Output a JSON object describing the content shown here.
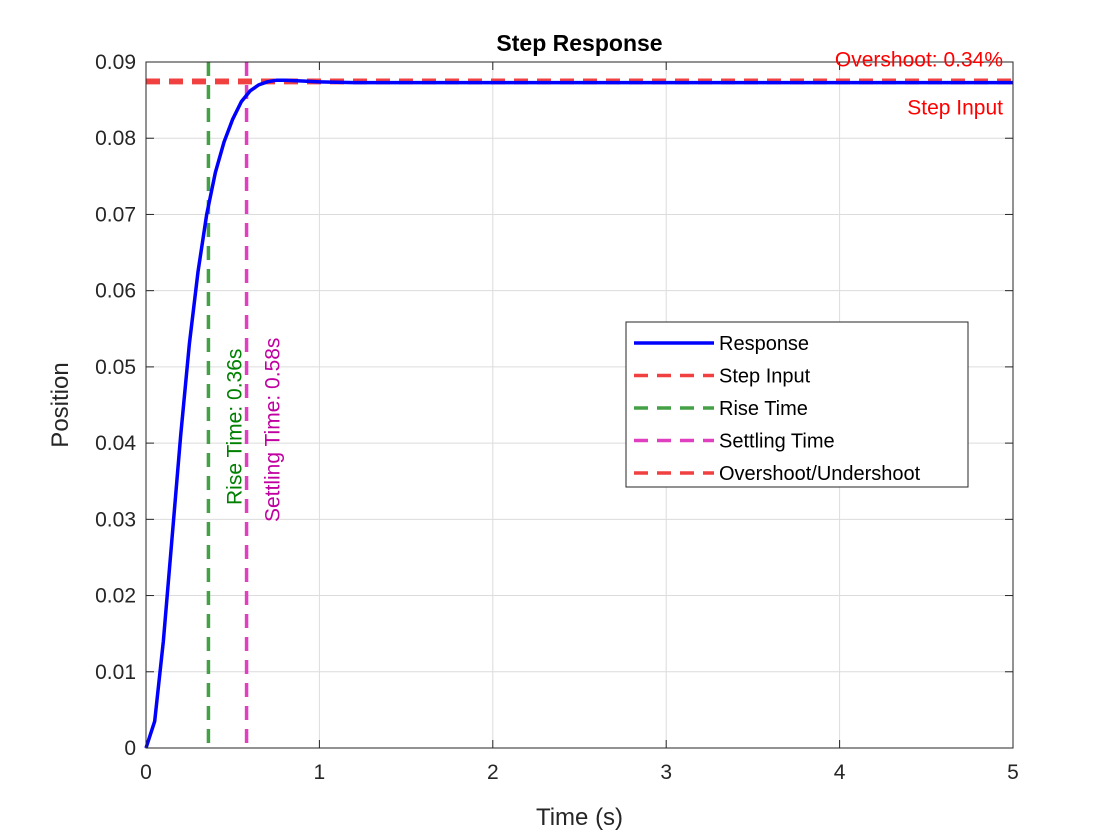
{
  "chart_data": {
    "type": "line",
    "title": "Step Response",
    "xlabel": "Time (s)",
    "ylabel": "Position",
    "xlim": [
      0,
      5
    ],
    "ylim": [
      0,
      0.09
    ],
    "x_ticks": [
      "0",
      "1",
      "2",
      "3",
      "4",
      "5"
    ],
    "y_ticks": [
      "0",
      "0.01",
      "0.02",
      "0.03",
      "0.04",
      "0.05",
      "0.06",
      "0.07",
      "0.08",
      "0.09"
    ],
    "grid": true,
    "legend_position": "right-middle",
    "series": [
      {
        "name": "Response",
        "color": "#0000ff",
        "style": "solid",
        "x": [
          0,
          0.05,
          0.1,
          0.15,
          0.2,
          0.25,
          0.3,
          0.35,
          0.4,
          0.45,
          0.5,
          0.55,
          0.6,
          0.65,
          0.7,
          0.75,
          0.8,
          0.9,
          1.0,
          1.2,
          1.5,
          2.0,
          3.0,
          4.0,
          5.0
        ],
        "y": [
          0,
          0.0035,
          0.014,
          0.0275,
          0.041,
          0.053,
          0.0625,
          0.07,
          0.0755,
          0.0795,
          0.0825,
          0.0848,
          0.0862,
          0.087,
          0.0874,
          0.0876,
          0.0876,
          0.0875,
          0.0874,
          0.0873,
          0.0873,
          0.0873,
          0.0873,
          0.0873,
          0.0873
        ]
      }
    ],
    "reference_lines": [
      {
        "name": "Step Input",
        "orientation": "horizontal",
        "value": 0.0873,
        "color": "#f04040"
      },
      {
        "name": "Rise Time",
        "orientation": "vertical",
        "value": 0.36,
        "color": "#44a044"
      },
      {
        "name": "Settling Time",
        "orientation": "vertical",
        "value": 0.58,
        "color": "#e040c0"
      },
      {
        "name": "Overshoot/Undershoot",
        "orientation": "horizontal",
        "value": 0.0876,
        "color": "#f04040"
      }
    ],
    "annotations": {
      "overshoot": "Overshoot: 0.34%",
      "step_input": "Step Input",
      "rise_time": "Rise Time: 0.36s",
      "settling_time": "Settling Time: 0.58s"
    },
    "colors": {
      "overshoot_text": "#ff0000",
      "rise_text": "#008000",
      "settling_text": "#c000a0"
    }
  }
}
